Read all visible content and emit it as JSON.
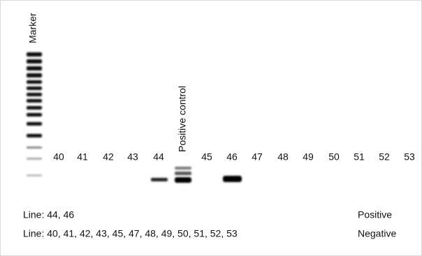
{
  "labels": {
    "marker": "Marker",
    "positive_control": "Positive control"
  },
  "lanes": [
    "40",
    "41",
    "42",
    "43",
    "44",
    "45",
    "46",
    "47",
    "48",
    "49",
    "50",
    "51",
    "52",
    "53"
  ],
  "results": [
    {
      "lines": "Line: 44, 46",
      "result": "Positive"
    },
    {
      "lines": "Line: 40, 41, 42, 43, 45, 47, 48, 49, 50, 51, 52, 53",
      "result": "Negative"
    }
  ]
}
